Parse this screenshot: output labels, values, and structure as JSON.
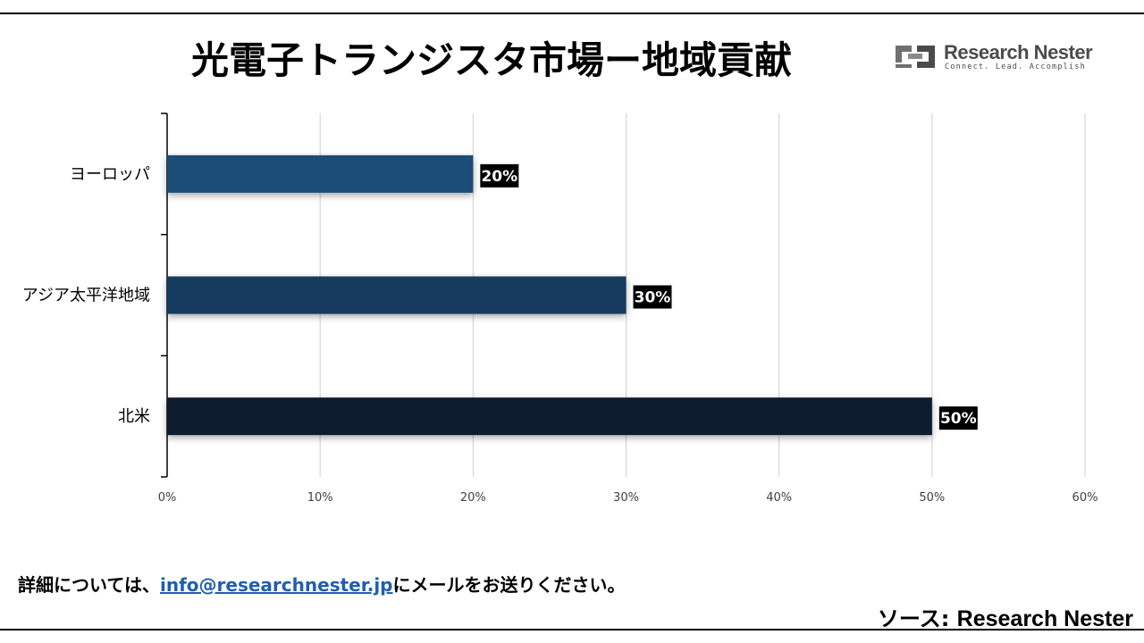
{
  "title": "光電子トランジスタ市場ー地域貢献",
  "logo": {
    "brand": "Research Nester",
    "tagline": "Connect. Lead. Accomplish"
  },
  "footer": {
    "prefix": "詳細については、",
    "email": "info@researchnester.jp",
    "suffix": "にメールをお送りください。"
  },
  "source": {
    "label": "ソース:",
    "name": "Research Nester"
  },
  "chart_data": {
    "type": "bar",
    "orientation": "horizontal",
    "categories": [
      "ヨーロッパ",
      "アジア太平洋地域",
      "北米"
    ],
    "values": [
      20,
      30,
      50
    ],
    "data_labels": [
      "20%",
      "30%",
      "50%"
    ],
    "bar_colors": [
      "#1f4e79",
      "#163a5f",
      "#0f1e2e"
    ],
    "xlim": [
      0,
      60
    ],
    "x_ticks": [
      "0%",
      "10%",
      "20%",
      "30%",
      "40%",
      "50%",
      "60%"
    ],
    "grid": true,
    "legend": "none"
  }
}
